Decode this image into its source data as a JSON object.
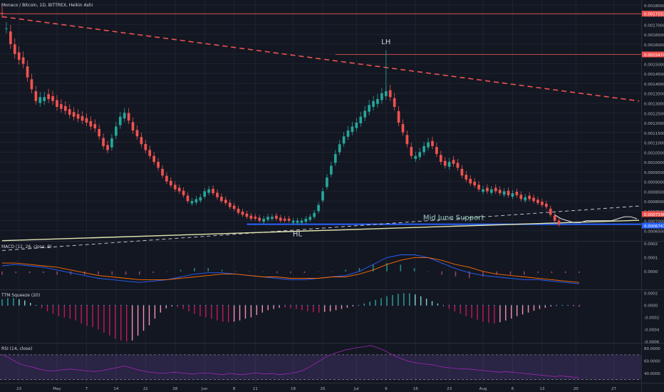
{
  "header": {
    "symbol_title": "Monaco / Bitcoin, 1D, BITTREX, Heikin Ashi"
  },
  "colors": {
    "background": "#131722",
    "grid": "#1f2330",
    "up": "#26a69a",
    "down": "#ef5350",
    "macd_line": "#2962ff",
    "signal_line": "#ff6d00",
    "rsi_band": "#7e57c2",
    "trendline_dashed_red": "#ef5350",
    "support_blue": "#2962ff",
    "support_line_light": "#e0e6b0"
  },
  "chart_data": [
    {
      "type": "candlestick",
      "title": "Monaco / Bitcoin, 1D, BITTREX, Heikin Ashi",
      "x_tick_labels": [
        "23",
        "May",
        "7",
        "14",
        "21",
        "28",
        "Jun",
        "8",
        "11",
        "18",
        "25",
        "Jul",
        "9",
        "16",
        "23",
        "Aug",
        "6",
        "13",
        "20",
        "27"
      ],
      "y_tick_labels": [
        "0.00180000",
        "0.00175000",
        "0.00170000",
        "0.00165000",
        "0.00160000",
        "0.00155000",
        "0.00150000",
        "0.00145000",
        "0.00140000",
        "0.00135000",
        "0.00130000",
        "0.00125000",
        "0.00120000",
        "0.00115000",
        "0.00110000",
        "0.00105000",
        "0.00100000",
        "0.00095000",
        "0.00090000",
        "0.00085000",
        "0.00080000",
        "0.00075000",
        "0.00070000",
        "0.00065000",
        "0.00060000"
      ],
      "ylim": [
        0.000597,
        0.001825
      ],
      "price_flags": [
        {
          "text": "0.00175537",
          "value": 0.00175537,
          "color": "#ef5350"
        },
        {
          "text": "0.00154749",
          "value": 0.00154749,
          "color": "#ef5350"
        },
        {
          "text": "0.00073368",
          "value": 0.00073368,
          "color": "#ef5350"
        },
        {
          "text": "0.00067473",
          "value": 0.00067473,
          "color": "#2962ff"
        }
      ],
      "annotations": [
        {
          "text": "LH",
          "x_index": 91,
          "y": 0.0016
        },
        {
          "text": "HL",
          "x_index": 70,
          "y": 0.00062
        },
        {
          "text": "Mid June Support",
          "x_index": 107,
          "y": 0.000705
        }
      ],
      "trendlines": [
        {
          "name": "dashed_red",
          "from": [
            0,
            0.00174
          ],
          "to": [
            151,
            0.00131
          ]
        },
        {
          "name": "dashed_white",
          "from": [
            0,
            0.000548
          ],
          "to": [
            151,
            0.000775
          ]
        },
        {
          "name": "solid_light",
          "from": [
            0,
            0.000598
          ],
          "to": [
            151,
            0.000702
          ]
        }
      ],
      "support_value": 0.000682,
      "candles_close": [
        0.00176,
        0.00168,
        0.0016,
        0.00155,
        0.00152,
        0.0015,
        0.00143,
        0.00137,
        0.00131,
        0.00133,
        0.00133,
        0.00132,
        0.00131,
        0.00128,
        0.00127,
        0.00126,
        0.00124,
        0.00123,
        0.00122,
        0.00121,
        0.0012,
        0.00118,
        0.00117,
        0.00113,
        0.00108,
        0.00106,
        0.00112,
        0.00118,
        0.00123,
        0.00125,
        0.00121,
        0.00116,
        0.00113,
        0.00109,
        0.00106,
        0.00103,
        0.001,
        0.00097,
        0.00093,
        0.0009,
        0.00088,
        0.00086,
        0.00085,
        0.00083,
        0.0008,
        0.0008,
        0.00081,
        0.00082,
        0.00085,
        0.00086,
        0.00084,
        0.00082,
        0.0008,
        0.00079,
        0.00077,
        0.00076,
        0.00074,
        0.00073,
        0.00072,
        0.00071,
        0.00071,
        0.0007,
        0.00071,
        0.00072,
        0.00072,
        0.00071,
        0.0007,
        0.0007,
        0.0007,
        0.0007,
        0.0007,
        0.0007,
        0.00071,
        0.00072,
        0.00074,
        0.00078,
        0.00085,
        0.00092,
        0.00098,
        0.00104,
        0.00109,
        0.00113,
        0.00116,
        0.00118,
        0.0012,
        0.00123,
        0.00126,
        0.00129,
        0.00131,
        0.00132,
        0.00135,
        0.00136,
        0.00133,
        0.00128,
        0.0012,
        0.00115,
        0.00109,
        0.00103,
        0.00103,
        0.00105,
        0.00108,
        0.0011,
        0.00108,
        0.00104,
        0.001,
        0.00098,
        0.001,
        0.00099,
        0.00097,
        0.00093,
        0.00091,
        0.00089,
        0.00088,
        0.00086,
        0.00086,
        0.00085,
        0.00086,
        0.00085,
        0.00084,
        0.00085,
        0.00083,
        0.00084,
        0.00083,
        0.00081,
        0.00082,
        0.00081,
        0.0008,
        0.00079,
        0.00078,
        0.00077,
        0.00073,
        0.0007,
        0.00068
      ],
      "candles_up": [
        0,
        1,
        0,
        0,
        0,
        0,
        0,
        0,
        0,
        1,
        1,
        0,
        0,
        0,
        0,
        0,
        0,
        0,
        0,
        0,
        0,
        0,
        0,
        0,
        0,
        0,
        1,
        1,
        1,
        1,
        0,
        0,
        0,
        0,
        0,
        0,
        0,
        0,
        0,
        0,
        0,
        0,
        0,
        0,
        0,
        1,
        1,
        1,
        1,
        1,
        0,
        0,
        0,
        0,
        0,
        0,
        0,
        0,
        0,
        0,
        0,
        0,
        1,
        1,
        1,
        0,
        0,
        0,
        0,
        1,
        1,
        1,
        1,
        1,
        1,
        1,
        1,
        1,
        1,
        1,
        1,
        1,
        1,
        1,
        1,
        1,
        1,
        1,
        1,
        1,
        1,
        1,
        0,
        0,
        0,
        0,
        0,
        0,
        1,
        1,
        1,
        1,
        0,
        0,
        0,
        0,
        1,
        0,
        0,
        0,
        0,
        0,
        0,
        0,
        1,
        0,
        1,
        0,
        0,
        1,
        0,
        1,
        0,
        0,
        1,
        0,
        0,
        0,
        0,
        0,
        0,
        0,
        0
      ],
      "moving_average": [
        0.00073,
        0.00071,
        0.0007,
        0.00069,
        0.00069,
        0.0007,
        0.0007,
        0.0007,
        0.0007,
        0.0007,
        0.00071,
        0.00072,
        0.00072,
        0.00071
      ]
    },
    {
      "type": "line",
      "title": "MACD (12, 26, close, 9)",
      "y_tick_labels": [
        "0.0002",
        "0.0001",
        "0.0000"
      ],
      "ylim": [
        -0.00013,
        0.00021
      ],
      "series": [
        {
          "name": "MACD",
          "values": [
            4e-05,
            5e-05,
            4e-05,
            3e-05,
            1e-05,
            -1e-05,
            -3e-05,
            -5e-05,
            -6e-05,
            -7e-05,
            -8e-05,
            -7e-05,
            -6e-05,
            -4e-05,
            -2e-05,
            -1e-05,
            -1e-05,
            -2e-05,
            -3e-05,
            -4e-05,
            -5e-05,
            -6e-05,
            -6e-05,
            -5e-05,
            -4e-05,
            -3e-05,
            0.0,
            5e-05,
            0.0001,
            0.00012,
            0.00012,
            0.0001,
            6e-05,
            2e-05,
            -1e-05,
            -3e-05,
            -4e-05,
            -5e-05,
            -6e-05,
            -6e-05,
            -7e-05,
            -8e-05,
            -9e-05
          ]
        },
        {
          "name": "Signal",
          "values": [
            6e-05,
            6e-05,
            5e-05,
            4e-05,
            3e-05,
            1e-05,
            -1e-05,
            -3e-05,
            -4e-05,
            -5e-05,
            -6e-05,
            -6e-05,
            -6e-05,
            -5e-05,
            -4e-05,
            -3e-05,
            -2e-05,
            -2e-05,
            -3e-05,
            -4e-05,
            -4e-05,
            -5e-05,
            -5e-05,
            -5e-05,
            -4e-05,
            -4e-05,
            -2e-05,
            1e-05,
            5e-05,
            8e-05,
            0.0001,
            0.0001,
            8e-05,
            5e-05,
            3e-05,
            0.0,
            -2e-05,
            -3e-05,
            -4e-05,
            -5e-05,
            -6e-05,
            -7e-05,
            -8e-05
          ]
        }
      ]
    },
    {
      "type": "bar",
      "title": "TTM Squeeze (20)",
      "y_tick_labels": [
        "0.0002",
        "0.0000",
        "-0.0002",
        "-0.0004",
        "-0.0006"
      ],
      "ylim": [
        -0.00062,
        0.00024
      ],
      "values": [
        0.0001,
        0.00012,
        0.00012,
        0.0001,
        8e-05,
        4e-05,
        0.0,
        -5e-05,
        -0.0001,
        -0.00014,
        -0.00018,
        -0.0002,
        -0.00022,
        -0.00025,
        -0.0003,
        -0.00034,
        -0.00036,
        -0.0004,
        -0.00045,
        -0.0005,
        -0.00055,
        -0.00058,
        -0.0006,
        -0.00058,
        -0.0005,
        -0.00042,
        -0.00033,
        -0.00022,
        -0.00012,
        -5e-05,
        -2e-05,
        -3e-05,
        -6e-05,
        -0.0001,
        -0.00014,
        -0.00018,
        -0.0002,
        -0.00022,
        -0.00025,
        -0.00027,
        -0.00028,
        -0.00027,
        -0.00025,
        -0.00022,
        -0.0002,
        -0.00016,
        -0.00012,
        -8e-05,
        -6e-05,
        -4e-05,
        -4e-05,
        -5e-05,
        -6e-05,
        -8e-05,
        -0.0001,
        -0.00011,
        -0.00012,
        -0.00011,
        -0.0001,
        -8e-05,
        -6e-05,
        -4e-05,
        -2e-05,
        0.0,
        3e-05,
        6e-05,
        9e-05,
        0.00012,
        0.00015,
        0.00017,
        0.00019,
        0.0002,
        0.0002,
        0.00018,
        0.00015,
        0.00011,
        7e-05,
        3e-05,
        -2e-05,
        -6e-05,
        -0.0001,
        -0.00014,
        -0.00018,
        -0.00021,
        -0.00024,
        -0.00027,
        -0.00029,
        -0.0003,
        -0.00028,
        -0.00025,
        -0.00022,
        -0.00018,
        -0.00015,
        -0.00012,
        -9e-05,
        -6e-05,
        -4e-05,
        -2e-05,
        -1e-05,
        0.0,
        -1e-05,
        -2e-05,
        -3e-05
      ]
    },
    {
      "type": "line",
      "title": "RSI (14, close)",
      "y_tick_labels": [
        "80.0000",
        "60.0000",
        "40.0000"
      ],
      "ylim": [
        25,
        87
      ],
      "bands": [
        70,
        30
      ],
      "values": [
        70,
        66,
        60,
        55,
        52,
        50,
        47,
        45,
        44,
        45,
        46,
        47,
        46,
        45,
        44,
        43,
        44,
        46,
        48,
        50,
        52,
        49,
        46,
        44,
        42,
        41,
        40,
        41,
        42,
        41,
        40,
        39,
        40,
        41,
        40,
        39,
        38,
        40,
        39,
        38,
        39,
        41,
        40,
        39,
        40,
        38,
        39,
        40,
        42,
        45,
        50,
        56,
        62,
        68,
        72,
        75,
        78,
        80,
        82,
        83,
        85,
        82,
        78,
        73,
        68,
        64,
        60,
        58,
        56,
        55,
        54,
        52,
        50,
        49,
        48,
        47,
        47,
        46,
        45,
        44,
        43,
        42,
        43,
        42,
        41,
        40,
        39,
        38,
        37,
        36,
        35,
        36,
        35,
        34,
        33
      ]
    }
  ]
}
